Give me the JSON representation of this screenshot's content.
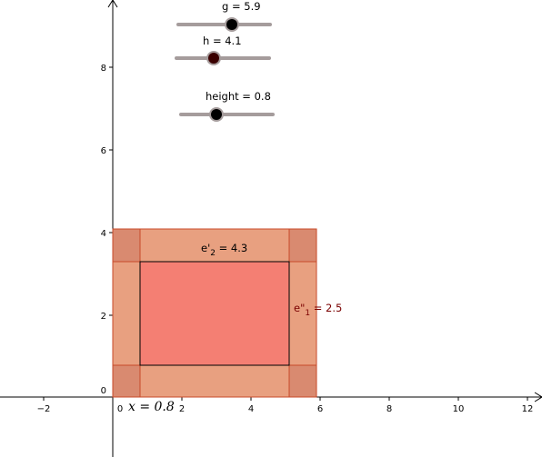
{
  "axes": {
    "x_ticks": [
      "−2",
      "2",
      "4",
      "6",
      "8",
      "10",
      "12"
    ],
    "y_ticks": [
      "2",
      "4",
      "6",
      "8"
    ],
    "origin_x": "0",
    "origin_y": "0"
  },
  "sliders": [
    {
      "label": "g = 5.9",
      "value": 5.9
    },
    {
      "label": "h = 4.1",
      "value": 4.1
    },
    {
      "label": "height = 0.8",
      "value": 0.8
    }
  ],
  "labels": {
    "e2_prefix": "e'",
    "e2_sub": "2",
    "e2_value": " = 4.3",
    "e1_prefix": "e\"",
    "e1_sub": "1",
    "e1_value": " = 2.5",
    "x_text": "x = 0.8"
  },
  "colors": {
    "outer": "#e8a080",
    "corner": "#d98a70",
    "inner": "#f47f73",
    "border": "#c84a2a",
    "slider_track": "#a59c9c",
    "slider_knob": "#000000",
    "h_knob": "#3a0000",
    "label_dark_red": "#7a0000"
  }
}
